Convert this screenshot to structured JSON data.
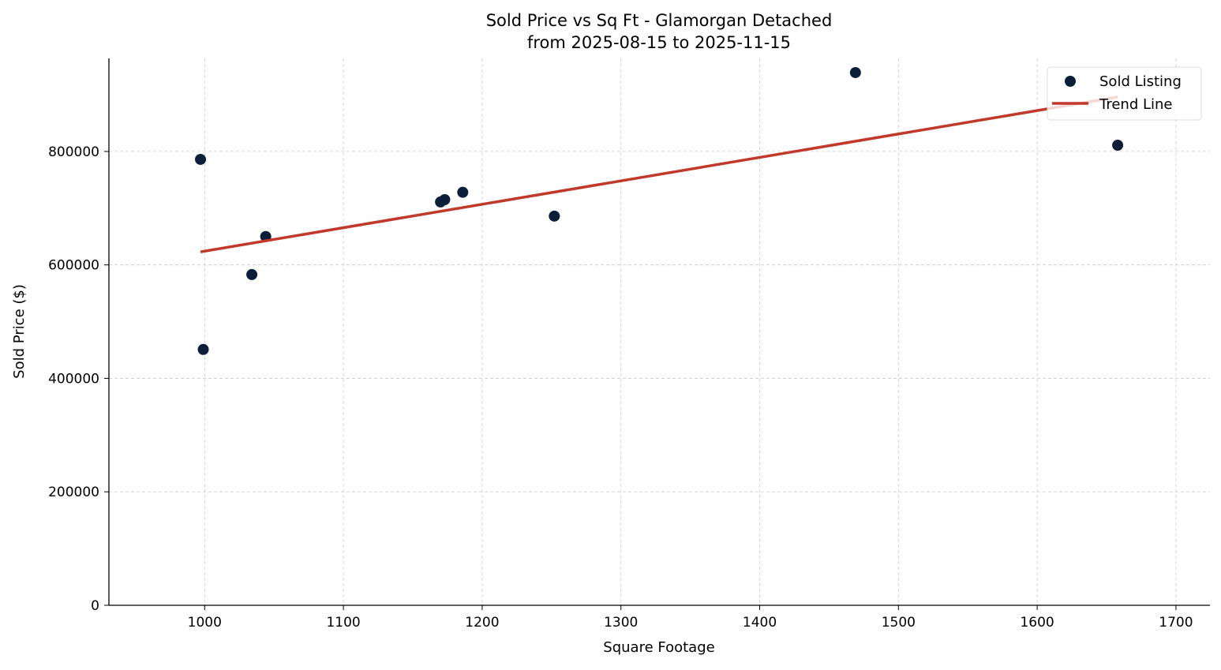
{
  "chart_data": {
    "type": "scatter",
    "title": "Sold Price vs Sq Ft - Glamorgan Detached",
    "subtitle": "from 2025-08-15 to 2025-11-15",
    "xlabel": "Square Footage",
    "ylabel": "Sold Price ($)",
    "xlim": [
      931,
      1724.5
    ],
    "ylim": [
      0,
      964000
    ],
    "xticks": [
      1000,
      1100,
      1200,
      1300,
      1400,
      1500,
      1600,
      1700
    ],
    "yticks": [
      0,
      200000,
      400000,
      600000,
      800000
    ],
    "grid": true,
    "legend_placement": "top-right",
    "series": [
      {
        "name": "Sold Listing",
        "kind": "scatter",
        "color": "#0b1f3a",
        "points": [
          [
            997,
            786000
          ],
          [
            999,
            451000
          ],
          [
            1034,
            583000
          ],
          [
            1044,
            650000
          ],
          [
            1170,
            711000
          ],
          [
            1173,
            715000
          ],
          [
            1186,
            728000
          ],
          [
            1252,
            686000
          ],
          [
            1469,
            939000
          ],
          [
            1658,
            811000
          ]
        ]
      },
      {
        "name": "Trend Line",
        "kind": "line",
        "color": "#c0392b",
        "points": [
          [
            997,
            623000
          ],
          [
            1658,
            896000
          ]
        ]
      }
    ]
  }
}
